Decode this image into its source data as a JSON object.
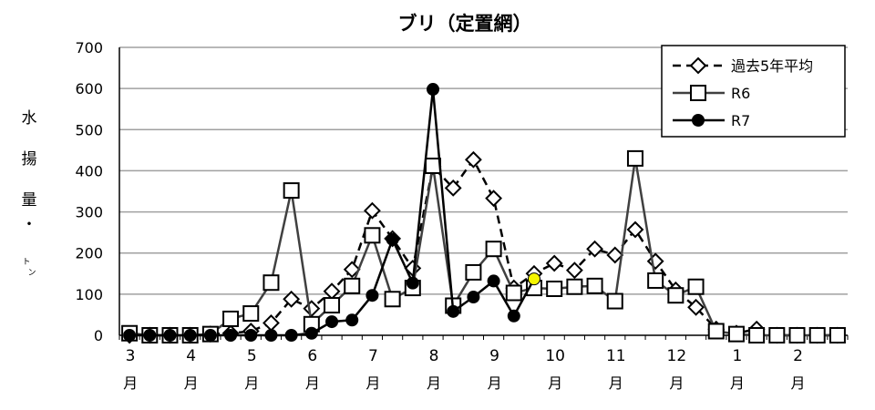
{
  "chart_data": {
    "type": "line",
    "title": "ブリ（定置網）",
    "ylabel": "水揚量・トン",
    "ylabel_chars": [
      "水",
      "揚",
      "量",
      "・",
      "ト",
      "ン"
    ],
    "ylim": [
      0,
      700
    ],
    "yticks": [
      0,
      100,
      200,
      300,
      400,
      500,
      600,
      700
    ],
    "grid": true,
    "legend_position": "top-right",
    "month_labels": [
      "3",
      "4",
      "5",
      "6",
      "7",
      "8",
      "9",
      "10",
      "11",
      "12",
      "1",
      "2"
    ],
    "month_suffix": "月",
    "series": [
      {
        "name": "過去5年平均",
        "style": "dashed",
        "marker": "diamond",
        "color": "#000000",
        "values": [
          0,
          0,
          0,
          0,
          3,
          5,
          10,
          30,
          88,
          65,
          107,
          160,
          303,
          235,
          163,
          410,
          358,
          427,
          333,
          115,
          150,
          175,
          158,
          210,
          195,
          257,
          180,
          110,
          68,
          15,
          5,
          15,
          0,
          0,
          0,
          0
        ]
      },
      {
        "name": "R6",
        "style": "solid",
        "marker": "square",
        "color": "#404040",
        "values": [
          5,
          0,
          0,
          0,
          3,
          40,
          53,
          128,
          352,
          27,
          73,
          120,
          243,
          88,
          115,
          412,
          72,
          153,
          210,
          103,
          115,
          113,
          118,
          120,
          83,
          430,
          133,
          97,
          118,
          10,
          3,
          0,
          0,
          0,
          0,
          0
        ]
      },
      {
        "name": "R7",
        "style": "solid",
        "marker": "circle",
        "color": "#000000",
        "values": [
          0,
          0,
          0,
          0,
          0,
          0,
          0,
          0,
          0,
          5,
          33,
          37,
          97,
          233,
          127,
          598,
          58,
          93,
          132,
          47,
          137
        ]
      }
    ],
    "highlight_color": "#f5f500"
  }
}
